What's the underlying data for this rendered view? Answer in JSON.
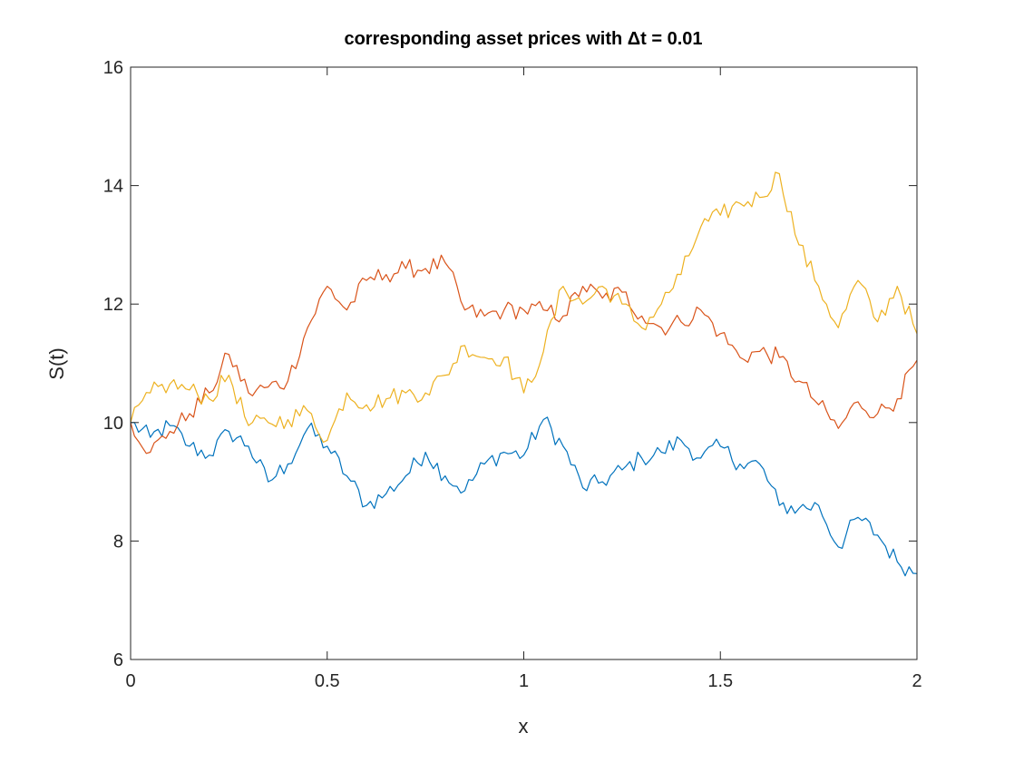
{
  "chart_data": {
    "type": "line",
    "title": "corresponding asset prices with Δt = 0.01",
    "xlabel": "x",
    "ylabel": "S(t)",
    "xlim": [
      0,
      2
    ],
    "ylim": [
      6,
      16
    ],
    "xticks": [
      0,
      0.5,
      1,
      1.5,
      2
    ],
    "xtick_labels": [
      "0",
      "0.5",
      "1",
      "1.5",
      "2"
    ],
    "yticks": [
      6,
      8,
      10,
      12,
      14,
      16
    ],
    "ytick_labels": [
      "6",
      "8",
      "10",
      "12",
      "14",
      "16"
    ],
    "grid": false,
    "legend": "none",
    "x": [
      0.0,
      0.05,
      0.1,
      0.15,
      0.2,
      0.25,
      0.3,
      0.35,
      0.4,
      0.45,
      0.5,
      0.55,
      0.6,
      0.65,
      0.7,
      0.75,
      0.8,
      0.85,
      0.9,
      0.95,
      1.0,
      1.05,
      1.1,
      1.15,
      1.2,
      1.25,
      1.3,
      1.35,
      1.4,
      1.45,
      1.5,
      1.55,
      1.6,
      1.65,
      1.7,
      1.75,
      1.8,
      1.85,
      1.9,
      1.95,
      2.0
    ],
    "series": [
      {
        "color": "#0072BD",
        "values": [
          10.0,
          9.75,
          9.95,
          9.6,
          9.45,
          9.85,
          9.6,
          9.0,
          9.3,
          9.9,
          9.6,
          9.1,
          8.6,
          8.8,
          9.1,
          9.5,
          9.1,
          8.85,
          9.3,
          9.5,
          9.45,
          10.05,
          9.6,
          8.9,
          9.0,
          9.2,
          9.4,
          9.5,
          9.7,
          9.4,
          9.6,
          9.3,
          9.3,
          8.6,
          8.55,
          8.6,
          7.9,
          8.4,
          8.1,
          7.65,
          7.45
        ]
      },
      {
        "color": "#D95319",
        "values": [
          10.0,
          9.5,
          9.85,
          10.15,
          10.5,
          11.15,
          10.5,
          10.6,
          10.7,
          11.6,
          12.3,
          11.9,
          12.4,
          12.5,
          12.6,
          12.6,
          12.7,
          11.9,
          11.8,
          11.9,
          11.9,
          11.9,
          11.8,
          12.3,
          12.1,
          12.2,
          11.8,
          11.6,
          11.7,
          11.9,
          11.5,
          11.1,
          11.2,
          11.1,
          10.7,
          10.3,
          9.9,
          10.35,
          10.15,
          10.4,
          11.05
        ]
      },
      {
        "color": "#EDB120",
        "values": [
          10.0,
          10.5,
          10.65,
          10.55,
          10.4,
          10.8,
          9.95,
          10.0,
          10.05,
          10.2,
          9.7,
          10.5,
          10.3,
          10.4,
          10.5,
          10.5,
          10.8,
          11.3,
          11.1,
          11.1,
          10.5,
          11.2,
          12.3,
          12.0,
          12.3,
          12.0,
          11.6,
          12.0,
          12.5,
          13.3,
          13.5,
          13.7,
          13.8,
          14.2,
          13.0,
          12.3,
          11.6,
          12.4,
          11.7,
          12.3,
          11.5
        ]
      }
    ]
  }
}
